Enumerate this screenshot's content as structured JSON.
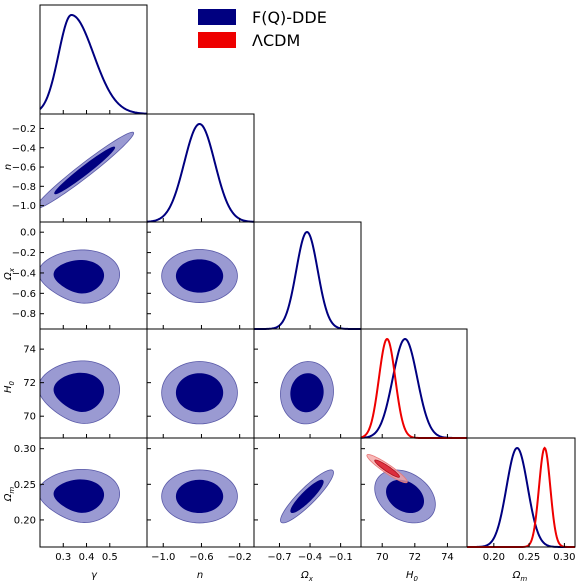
{
  "chart_data": {
    "type": "corner",
    "parameters": [
      "γ",
      "n",
      "Ω_x",
      "H_0",
      "Ω_m"
    ],
    "axis_labels": [
      "γ",
      "n",
      "Ω",
      "H",
      "Ω"
    ],
    "axis_label_subscripts": [
      "",
      "",
      "x",
      "0",
      "m"
    ],
    "colors": {
      "fqdde_dark": "#000080",
      "fqdde_light": "#9a9ad2",
      "lcdm_line": "#ee0000",
      "lcdm_dark": "#d91a2a",
      "lcdm_light": "#f4a0a0",
      "frame": "#000000"
    },
    "legend": {
      "placement": "top-center",
      "entries": [
        {
          "label": "F(Q)-DDE",
          "color": "#000080"
        },
        {
          "label": "ΛCDM",
          "color": "#ee0000"
        }
      ]
    },
    "ranges": {
      "gamma": [
        0.2,
        0.66
      ],
      "n": [
        -1.17,
        -0.05
      ],
      "omega_x": [
        -0.95,
        0.1
      ],
      "H0": [
        68.7,
        75.2
      ],
      "omega_m": [
        0.162,
        0.315
      ]
    },
    "ticks": {
      "gamma": {
        "values": [
          0.3,
          0.4,
          0.5
        ],
        "labels": [
          "0.3",
          "0.4",
          "0.5"
        ]
      },
      "n_x": {
        "values": [
          -1.0,
          -0.6,
          -0.2
        ],
        "labels": [
          "−1.0",
          "−0.6",
          "−0.2"
        ]
      },
      "n_y": {
        "values": [
          -1.0,
          -0.8,
          -0.6,
          -0.4,
          -0.2
        ],
        "labels": [
          "−1.0",
          "−0.8",
          "−0.6",
          "−0.4",
          "−0.2"
        ]
      },
      "omega_x_x": {
        "values": [
          -0.7,
          -0.4,
          -0.1
        ],
        "labels": [
          "−0.7",
          "−0.4",
          "−0.1"
        ]
      },
      "omega_x_y": {
        "values": [
          -0.8,
          -0.6,
          -0.4,
          -0.2,
          0.0
        ],
        "labels": [
          "−0.8",
          "−0.6",
          "−0.4",
          "−0.2",
          "0.0"
        ]
      },
      "H0_x": {
        "values": [
          70,
          72,
          74
        ],
        "labels": [
          "70",
          "72",
          "74"
        ]
      },
      "H0_y": {
        "values": [
          70,
          72,
          74
        ],
        "labels": [
          "70",
          "72",
          "74"
        ]
      },
      "omega_m_x": {
        "values": [
          0.2,
          0.25,
          0.3
        ],
        "labels": [
          "0.20",
          "0.25",
          "0.30"
        ]
      },
      "omega_m_y": {
        "values": [
          0.2,
          0.25,
          0.3
        ],
        "labels": [
          "0.20",
          "0.25",
          "0.30"
        ]
      }
    },
    "posteriors_1d": [
      {
        "param": "gamma",
        "series": [
          {
            "name": "F(Q)-DDE",
            "mean": 0.335,
            "sigma_left": 0.055,
            "sigma_right": 0.095
          }
        ]
      },
      {
        "param": "n",
        "series": [
          {
            "name": "F(Q)-DDE",
            "mean": -0.62,
            "sigma_left": 0.16,
            "sigma_right": 0.16
          }
        ]
      },
      {
        "param": "omega_x",
        "series": [
          {
            "name": "F(Q)-DDE",
            "mean": -0.43,
            "sigma_left": 0.105,
            "sigma_right": 0.105
          }
        ]
      },
      {
        "param": "H0",
        "series": [
          {
            "name": "F(Q)-DDE",
            "mean": 71.4,
            "sigma_left": 0.75,
            "sigma_right": 0.75
          },
          {
            "name": "ΛCDM",
            "mean": 70.3,
            "sigma_left": 0.5,
            "sigma_right": 0.5
          }
        ]
      },
      {
        "param": "omega_m",
        "series": [
          {
            "name": "F(Q)-DDE",
            "mean": 0.233,
            "sigma_left": 0.015,
            "sigma_right": 0.015
          },
          {
            "name": "ΛCDM",
            "mean": 0.272,
            "sigma_left": 0.008,
            "sigma_right": 0.008
          }
        ]
      }
    ],
    "contours_2d": [
      {
        "x": "gamma",
        "y": "n",
        "series": "F(Q)-DDE",
        "type": "ellipse",
        "center": [
          0.392,
          -0.635
        ],
        "sigma": [
          0.085,
          0.16
        ],
        "rho": 0.975
      },
      {
        "x": "gamma",
        "y": "omega_x",
        "series": "F(Q)-DDE",
        "type": "blob",
        "center": [
          0.365,
          -0.44
        ],
        "sigma": [
          0.07,
          0.105
        ],
        "rho": 0.0
      },
      {
        "x": "gamma",
        "y": "H0",
        "series": "F(Q)-DDE",
        "type": "blob",
        "center": [
          0.365,
          71.4
        ],
        "sigma": [
          0.07,
          0.75
        ],
        "rho": 0.0
      },
      {
        "x": "gamma",
        "y": "omega_m",
        "series": "F(Q)-DDE",
        "type": "blob",
        "center": [
          0.365,
          0.233
        ],
        "sigma": [
          0.07,
          0.015
        ],
        "rho": 0.0
      },
      {
        "x": "n",
        "y": "omega_x",
        "series": "F(Q)-DDE",
        "type": "ellipse",
        "center": [
          -0.62,
          -0.43
        ],
        "sigma": [
          0.16,
          0.105
        ],
        "rho": 0.0
      },
      {
        "x": "n",
        "y": "H0",
        "series": "F(Q)-DDE",
        "type": "ellipse",
        "center": [
          -0.62,
          71.4
        ],
        "sigma": [
          0.16,
          0.75
        ],
        "rho": 0.0
      },
      {
        "x": "n",
        "y": "omega_m",
        "series": "F(Q)-DDE",
        "type": "ellipse",
        "center": [
          -0.62,
          0.233
        ],
        "sigma": [
          0.16,
          0.015
        ],
        "rho": 0.0
      },
      {
        "x": "omega_x",
        "y": "H0",
        "series": "F(Q)-DDE",
        "type": "ellipse",
        "center": [
          -0.43,
          71.4
        ],
        "sigma": [
          0.105,
          0.75
        ],
        "rho": 0.05
      },
      {
        "x": "omega_x",
        "y": "omega_m",
        "series": "F(Q)-DDE",
        "type": "ellipse",
        "center": [
          -0.43,
          0.233
        ],
        "sigma": [
          0.105,
          0.015
        ],
        "rho": 0.9
      },
      {
        "x": "H0",
        "y": "omega_m",
        "series": "F(Q)-DDE",
        "type": "ellipse",
        "center": [
          71.4,
          0.233
        ],
        "sigma": [
          0.75,
          0.015
        ],
        "rho": -0.3
      },
      {
        "x": "H0",
        "y": "omega_m",
        "series": "ΛCDM",
        "type": "ellipse",
        "center": [
          70.3,
          0.272
        ],
        "sigma": [
          0.5,
          0.008
        ],
        "rho": -0.93
      }
    ]
  }
}
